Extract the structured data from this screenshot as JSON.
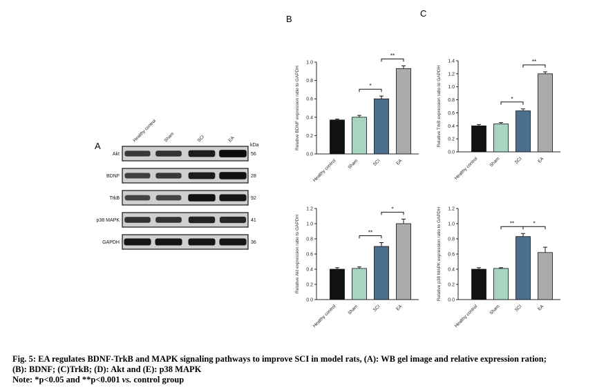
{
  "panels": {
    "A": "A",
    "B": "B",
    "C": "C"
  },
  "blot": {
    "lanes": [
      "Healthy control",
      "Sham",
      "SCI",
      "EA"
    ],
    "kda_header": "kDa",
    "rows": [
      {
        "label": "Akt",
        "kda": "56",
        "intensity": [
          0.55,
          0.6,
          0.8,
          0.95
        ]
      },
      {
        "label": "BDNF",
        "kda": "28",
        "intensity": [
          0.5,
          0.55,
          0.8,
          0.9
        ]
      },
      {
        "label": "TrkB",
        "kda": "92",
        "intensity": [
          0.45,
          0.45,
          0.9,
          0.85
        ]
      },
      {
        "label": "p38 MAPK",
        "kda": "41",
        "intensity": [
          0.6,
          0.6,
          0.75,
          0.7
        ]
      },
      {
        "label": "GAPDH",
        "kda": "36",
        "intensity": [
          0.85,
          0.85,
          0.85,
          0.85
        ]
      }
    ]
  },
  "chart_data": [
    {
      "type": "bar",
      "panel": "B",
      "categories": [
        "Healthy control",
        "Sham",
        "SCI",
        "EA"
      ],
      "values": [
        0.37,
        0.4,
        0.6,
        0.93
      ],
      "errors": [
        0.01,
        0.02,
        0.03,
        0.03
      ],
      "colors": [
        "#111111",
        "#a8d5c2",
        "#4d6f8f",
        "#ababab"
      ],
      "ylabel": "Relative BDNF expression ratio to GAPDH",
      "ylim": [
        0,
        1.0
      ],
      "yticks": [
        0.0,
        0.2,
        0.4,
        0.6,
        0.8,
        1.0
      ],
      "significance": [
        {
          "from": "Sham",
          "to": "SCI",
          "label": "*"
        },
        {
          "from": "SCI",
          "to": "EA",
          "label": "**"
        }
      ]
    },
    {
      "type": "bar",
      "panel": "C",
      "categories": [
        "Healthy control",
        "Sham",
        "SCI",
        "EA"
      ],
      "values": [
        0.4,
        0.43,
        0.63,
        1.2
      ],
      "errors": [
        0.02,
        0.02,
        0.03,
        0.03
      ],
      "colors": [
        "#111111",
        "#a8d5c2",
        "#4d6f8f",
        "#ababab"
      ],
      "ylabel": "Relative TrkB expression ratio to GAPDH",
      "ylim": [
        0,
        1.4
      ],
      "yticks": [
        0.0,
        0.2,
        0.4,
        0.6,
        0.8,
        1.0,
        1.2,
        1.4
      ],
      "significance": [
        {
          "from": "Sham",
          "to": "SCI",
          "label": "*"
        },
        {
          "from": "SCI",
          "to": "EA",
          "label": "**"
        }
      ]
    },
    {
      "type": "bar",
      "panel": "D",
      "categories": [
        "Healthy control",
        "Sham",
        "SCI",
        "EA"
      ],
      "values": [
        0.4,
        0.41,
        0.7,
        1.0
      ],
      "errors": [
        0.02,
        0.02,
        0.05,
        0.06
      ],
      "colors": [
        "#111111",
        "#a8d5c2",
        "#4d6f8f",
        "#ababab"
      ],
      "ylabel": "Relative Akt expression ratio to GAPDH",
      "ylim": [
        0,
        1.2
      ],
      "yticks": [
        0.0,
        0.2,
        0.4,
        0.6,
        0.8,
        1.0,
        1.2
      ],
      "significance": [
        {
          "from": "Sham",
          "to": "SCI",
          "label": "**"
        },
        {
          "from": "SCI",
          "to": "EA",
          "label": "*"
        }
      ]
    },
    {
      "type": "bar",
      "panel": "E",
      "categories": [
        "Healthy control",
        "Sham",
        "SCI",
        "EA"
      ],
      "values": [
        0.4,
        0.41,
        0.83,
        0.62
      ],
      "errors": [
        0.02,
        0.01,
        0.04,
        0.07
      ],
      "colors": [
        "#111111",
        "#a8d5c2",
        "#4d6f8f",
        "#ababab"
      ],
      "ylabel": "Relative p38 MAPK expression ratio to GAPDH",
      "ylim": [
        0,
        1.2
      ],
      "yticks": [
        0.0,
        0.2,
        0.4,
        0.6,
        0.8,
        1.0,
        1.2
      ],
      "significance": [
        {
          "from": "Sham",
          "to": "SCI",
          "label": "**"
        },
        {
          "from": "SCI",
          "to": "EA",
          "label": "*"
        }
      ]
    }
  ],
  "caption": {
    "line1": "Fig. 5: EA regulates BDNF-TrkB and MAPK signaling pathways to improve SCI in model rats, (A): WB gel image and relative expression ration;",
    "line2": "(B): BDNF; (C)TrkB; (D): Akt and (E): p38 MAPK",
    "note_prefix": "Note: *p<0.05 and **p<0.001 ",
    "note_vs": "vs.",
    "note_suffix": " control group"
  }
}
